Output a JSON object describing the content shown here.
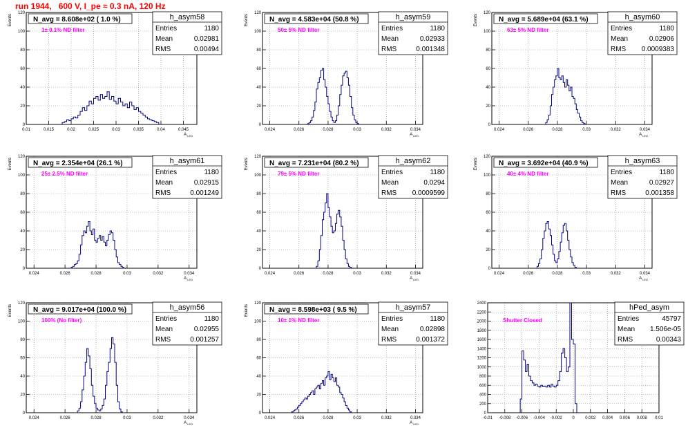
{
  "title": "run 1944,   600 V, I_pe ≈ 0.3 nA, 120 Hz",
  "chart_data": [
    {
      "type": "histogram",
      "name": "h_asym58",
      "ylabel": "Events",
      "xlabel": "A",
      "navg": "N_avg = 8.608e+02 ( 1.0 %)",
      "filter": "1± 0.1% ND filter",
      "stats": [
        [
          "Entries",
          "1180"
        ],
        [
          "Mean",
          "0.02981"
        ],
        [
          "RMS",
          "0.00494"
        ]
      ],
      "xlim": [
        0.01,
        0.048
      ],
      "ylim": [
        0,
        120
      ],
      "xticks": [
        0.01,
        0.015,
        0.02,
        0.025,
        0.03,
        0.035,
        0.04,
        0.045
      ],
      "xticklabels": [
        "0.01",
        "0.015",
        "0.02",
        "0.025",
        "0.03",
        "0.035",
        "0.04",
        "0.045"
      ],
      "yticks": [
        0,
        20,
        40,
        60,
        80,
        100,
        120
      ],
      "bins_start": 0.018,
      "bin_width": 0.0005,
      "counts": [
        2,
        3,
        5,
        4,
        6,
        8,
        7,
        10,
        14,
        18,
        15,
        20,
        25,
        22,
        28,
        30,
        26,
        32,
        28,
        30,
        35,
        27,
        30,
        25,
        22,
        28,
        24,
        20,
        22,
        18,
        24,
        20,
        16,
        18,
        14,
        12,
        10,
        8,
        6,
        5,
        4,
        3,
        2
      ]
    },
    {
      "type": "histogram",
      "name": "h_asym59",
      "ylabel": "Events",
      "xlabel": "A",
      "navg": "N_avg = 4.583e+04 (50.8 %)",
      "filter": "50± 5% ND filter",
      "stats": [
        [
          "Entries",
          "1180"
        ],
        [
          "Mean",
          "0.02933"
        ],
        [
          "RMS",
          "0.001348"
        ]
      ],
      "xlim": [
        0.0235,
        0.0345
      ],
      "ylim": [
        0,
        120
      ],
      "xticks": [
        0.024,
        0.026,
        0.028,
        0.03,
        0.032,
        0.034
      ],
      "xticklabels": [
        "0.024",
        "0.026",
        "0.028",
        "0.03",
        "0.032",
        "0.034"
      ],
      "yticks": [
        0,
        20,
        40,
        60,
        80,
        100,
        120
      ],
      "bins_start": 0.0266,
      "bin_width": 0.0001,
      "counts": [
        1,
        2,
        4,
        8,
        15,
        24,
        38,
        45,
        50,
        58,
        60,
        48,
        40,
        30,
        22,
        14,
        8,
        4,
        2,
        4,
        10,
        20,
        32,
        42,
        52,
        55,
        57,
        50,
        42,
        30,
        18,
        10,
        5,
        2,
        1
      ]
    },
    {
      "type": "histogram",
      "name": "h_asym60",
      "ylabel": "Events",
      "xlabel": "A",
      "navg": "N_avg = 5.689e+04 (63.1 %)",
      "filter": "63± 5% ND filter",
      "stats": [
        [
          "Entries",
          "1180"
        ],
        [
          "Mean",
          "0.02906"
        ],
        [
          "RMS",
          "0.0009383"
        ]
      ],
      "xlim": [
        0.0235,
        0.0345
      ],
      "ylim": [
        0,
        120
      ],
      "xticks": [
        0.024,
        0.026,
        0.028,
        0.03,
        0.032,
        0.034
      ],
      "xticklabels": [
        "0.024",
        "0.026",
        "0.028",
        "0.03",
        "0.032",
        "0.034"
      ],
      "yticks": [
        0,
        20,
        40,
        60,
        80,
        100,
        120
      ],
      "bins_start": 0.0272,
      "bin_width": 0.0001,
      "counts": [
        2,
        5,
        10,
        20,
        32,
        40,
        48,
        52,
        60,
        50,
        48,
        52,
        45,
        40,
        48,
        42,
        36,
        40,
        30,
        28,
        22,
        16,
        12,
        8,
        4,
        2,
        1
      ]
    },
    {
      "type": "histogram",
      "name": "h_asym61",
      "ylabel": "Events",
      "xlabel": "A",
      "navg": "N_avg = 2.354e+04 (26.1 %)",
      "filter": "25± 2.5% ND filter",
      "stats": [
        [
          "Entries",
          "1180"
        ],
        [
          "Mean",
          "0.02915"
        ],
        [
          "RMS",
          "0.001249"
        ]
      ],
      "xlim": [
        0.0235,
        0.0345
      ],
      "ylim": [
        0,
        120
      ],
      "xticks": [
        0.024,
        0.026,
        0.028,
        0.03,
        0.032,
        0.034
      ],
      "xticklabels": [
        "0.024",
        "0.026",
        "0.028",
        "0.03",
        "0.032",
        "0.034"
      ],
      "yticks": [
        0,
        20,
        40,
        60,
        80,
        100,
        120
      ],
      "bins_start": 0.0264,
      "bin_width": 0.0001,
      "counts": [
        1,
        2,
        4,
        5,
        8,
        15,
        25,
        35,
        40,
        38,
        45,
        50,
        40,
        36,
        42,
        30,
        28,
        32,
        35,
        30,
        34,
        28,
        24,
        30,
        36,
        40,
        38,
        30,
        20,
        12,
        6,
        4,
        2,
        1
      ]
    },
    {
      "type": "histogram",
      "name": "h_asym62",
      "ylabel": "Events",
      "xlabel": "A",
      "navg": "N_avg = 7.231e+04 (80.2 %)",
      "filter": "79± 5% ND filter",
      "stats": [
        [
          "Entries",
          "1180"
        ],
        [
          "Mean",
          "0.0294"
        ],
        [
          "RMS",
          "0.0009599"
        ]
      ],
      "xlim": [
        0.0235,
        0.0345
      ],
      "ylim": [
        0,
        120
      ],
      "xticks": [
        0.024,
        0.026,
        0.028,
        0.03,
        0.032,
        0.034
      ],
      "xticklabels": [
        "0.024",
        "0.026",
        "0.028",
        "0.03",
        "0.032",
        "0.034"
      ],
      "yticks": [
        0,
        20,
        40,
        60,
        80,
        100,
        120
      ],
      "bins_start": 0.0272,
      "bin_width": 0.0001,
      "counts": [
        2,
        8,
        20,
        35,
        52,
        60,
        70,
        80,
        65,
        55,
        45,
        38,
        40,
        48,
        58,
        62,
        55,
        45,
        30,
        20,
        10,
        5,
        2,
        1
      ]
    },
    {
      "type": "histogram",
      "name": "h_asym63",
      "ylabel": "Events",
      "xlabel": "A",
      "navg": "N_avg = 3.692e+04 (40.9 %)",
      "filter": "40± 4% ND filter",
      "stats": [
        [
          "Entries",
          "1180"
        ],
        [
          "Mean",
          "0.02927"
        ],
        [
          "RMS",
          "0.001358"
        ]
      ],
      "xlim": [
        0.0235,
        0.0345
      ],
      "ylim": [
        0,
        120
      ],
      "xticks": [
        0.024,
        0.026,
        0.028,
        0.03,
        0.032,
        0.034
      ],
      "xticklabels": [
        "0.024",
        "0.026",
        "0.028",
        "0.03",
        "0.032",
        "0.034"
      ],
      "yticks": [
        0,
        20,
        40,
        60,
        80,
        100,
        120
      ],
      "bins_start": 0.0266,
      "bin_width": 0.0001,
      "counts": [
        2,
        5,
        10,
        20,
        32,
        40,
        48,
        50,
        42,
        35,
        25,
        15,
        8,
        6,
        10,
        18,
        28,
        38,
        46,
        48,
        40,
        30,
        20,
        12,
        6,
        3,
        1
      ]
    },
    {
      "type": "histogram",
      "name": "h_asym56",
      "ylabel": "Events",
      "xlabel": "A",
      "navg": "N_avg = 9.017e+04 (100.0 %)",
      "filter": "100% (No filter)",
      "stats": [
        [
          "Entries",
          "1180"
        ],
        [
          "Mean",
          "0.02955"
        ],
        [
          "RMS",
          "0.001257"
        ]
      ],
      "xlim": [
        0.0235,
        0.0345
      ],
      "ylim": [
        0,
        120
      ],
      "xticks": [
        0.024,
        0.026,
        0.028,
        0.03,
        0.032,
        0.034
      ],
      "xticklabels": [
        "0.024",
        "0.026",
        "0.028",
        "0.03",
        "0.032",
        "0.034"
      ],
      "yticks": [
        0,
        20,
        40,
        60,
        80,
        100,
        120
      ],
      "bins_start": 0.0268,
      "bin_width": 0.0001,
      "counts": [
        2,
        5,
        12,
        25,
        40,
        55,
        70,
        62,
        48,
        30,
        18,
        10,
        5,
        3,
        2,
        4,
        8,
        15,
        30,
        45,
        55,
        70,
        82,
        75,
        55,
        30,
        12,
        4,
        1
      ]
    },
    {
      "type": "histogram",
      "name": "h_asym57",
      "ylabel": "Events",
      "xlabel": "A",
      "navg": "N_avg = 8.598e+03 ( 9.5 %)",
      "filter": "10± 1% ND filter",
      "stats": [
        [
          "Entries",
          "1180"
        ],
        [
          "Mean",
          "0.02898"
        ],
        [
          "RMS",
          "0.001372"
        ]
      ],
      "xlim": [
        0.0235,
        0.0345
      ],
      "ylim": [
        0,
        120
      ],
      "xticks": [
        0.024,
        0.026,
        0.028,
        0.03,
        0.032,
        0.034
      ],
      "xticklabels": [
        "0.024",
        "0.026",
        "0.028",
        "0.03",
        "0.032",
        "0.034"
      ],
      "yticks": [
        0,
        20,
        40,
        60,
        80,
        100,
        120
      ],
      "bins_start": 0.0255,
      "bin_width": 0.0001,
      "counts": [
        1,
        2,
        3,
        4,
        6,
        8,
        10,
        12,
        14,
        16,
        15,
        18,
        20,
        22,
        24,
        20,
        26,
        28,
        30,
        26,
        32,
        35,
        30,
        38,
        40,
        45,
        36,
        42,
        38,
        34,
        38,
        30,
        28,
        22,
        20,
        16,
        12,
        8,
        5,
        3,
        1
      ]
    },
    {
      "type": "histogram",
      "name": "hPed_asym",
      "ylabel": "",
      "xlabel": "",
      "navg": "",
      "filter": "Shutter Closed",
      "stats": [
        [
          "Entries",
          "45797"
        ],
        [
          "Mean",
          "1.506e-05"
        ],
        [
          "RMS",
          "0.00343"
        ]
      ],
      "xlim": [
        -0.01,
        0.01
      ],
      "ylim": [
        0,
        2400
      ],
      "xticks": [
        -0.01,
        -0.008,
        -0.006,
        -0.004,
        -0.002,
        0,
        0.002,
        0.004,
        0.006,
        0.008,
        0.01
      ],
      "xticklabels": [
        "-0.01",
        "-0.008",
        "-0.006",
        "-0.004",
        "-0.002",
        "0",
        "0.002",
        "0.004",
        "0.006",
        "0.008",
        "0.01"
      ],
      "yticks": [
        0,
        200,
        400,
        600,
        800,
        1000,
        1200,
        1400,
        1600,
        1800,
        2000,
        2200,
        2400
      ],
      "bins_start": -0.0062,
      "bin_width": 0.0002,
      "counts": [
        300,
        1350,
        1150,
        900,
        1050,
        800,
        700,
        650,
        600,
        620,
        580,
        560,
        600,
        570,
        580,
        560,
        600,
        560,
        620,
        580,
        560,
        600,
        700,
        900,
        1300,
        1400,
        1200,
        900,
        1000,
        2400,
        1600,
        1500,
        200
      ]
    }
  ]
}
